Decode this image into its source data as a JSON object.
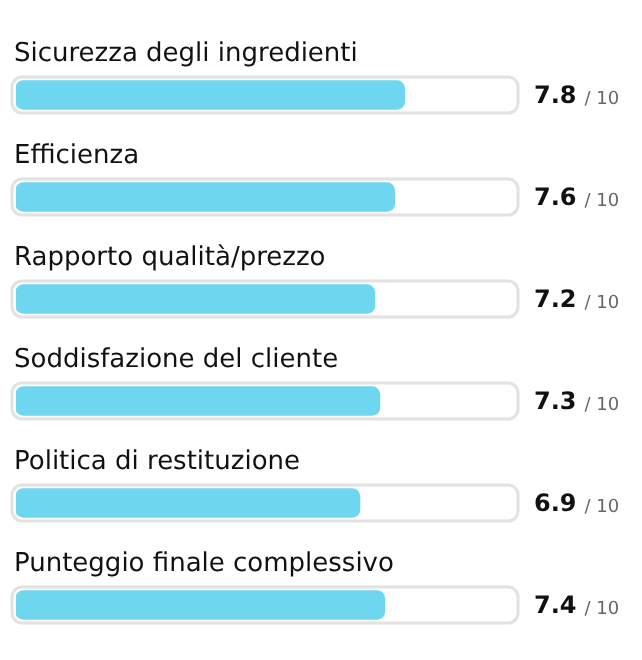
{
  "chart_data": {
    "type": "bar",
    "orientation": "horizontal",
    "categories": [
      "Sicurezza degli ingredienti",
      "Efficienza",
      "Rapporto qualità/prezzo",
      "Soddisfazione del cliente",
      "Politica di restituzione",
      "Punteggio finale complessivo"
    ],
    "values": [
      7.8,
      7.6,
      7.2,
      7.3,
      6.9,
      7.4
    ],
    "data_labels": true,
    "annotations": [
      "/ 10",
      "/ 10",
      "/ 10",
      "/ 10",
      "/ 10",
      "/ 10"
    ],
    "color": "#6fd6f0",
    "xlim": [
      0,
      10
    ],
    "legend": false
  }
}
